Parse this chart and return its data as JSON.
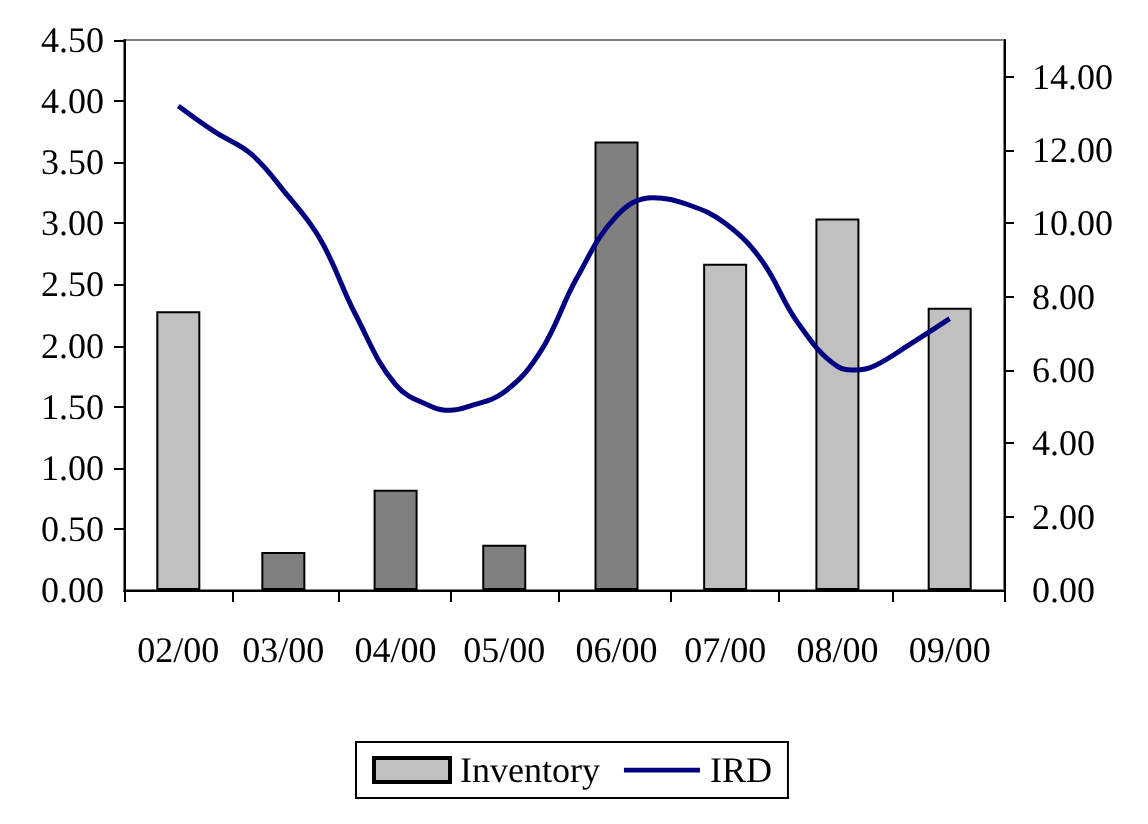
{
  "chart_data": {
    "type": "bar",
    "x": [
      "2000-02",
      "2000-03",
      "2000-04",
      "2000-05",
      "2000-06",
      "2000-07",
      "2000-08",
      "2000-09"
    ],
    "xlim": [
      "2000-01-17",
      "2000-09-16"
    ],
    "xticks": [
      {
        "value": "2000-01-17",
        "label": null
      },
      {
        "value": "2000-02",
        "label": "02/00"
      },
      {
        "value": "2000-02-16",
        "label": null
      },
      {
        "value": "2000-03",
        "label": "03/00"
      },
      {
        "value": "2000-03-16",
        "label": null
      },
      {
        "value": "2000-04",
        "label": "04/00"
      },
      {
        "value": "2000-04-16",
        "label": null
      },
      {
        "value": "2000-05",
        "label": "05/00"
      },
      {
        "value": "2000-05-16",
        "label": null
      },
      {
        "value": "2000-06",
        "label": "06/00"
      },
      {
        "value": "2000-06-16",
        "label": null
      },
      {
        "value": "2000-07",
        "label": "07/00"
      },
      {
        "value": "2000-07-16",
        "label": null
      },
      {
        "value": "2000-08",
        "label": "08/00"
      },
      {
        "value": "2000-08-16",
        "label": null
      },
      {
        "value": "2000-09",
        "label": "09/00"
      },
      {
        "value": "2000-09-16",
        "label": null
      }
    ],
    "ylim": [
      0,
      4.5
    ],
    "yticks": [
      {
        "value": 0,
        "label": "0.00"
      },
      {
        "value": 0.5,
        "label": "0.50"
      },
      {
        "value": 1,
        "label": "1.00"
      },
      {
        "value": 1.5,
        "label": "1.50"
      },
      {
        "value": 2,
        "label": "2.00"
      },
      {
        "value": 2.5,
        "label": "2.50"
      },
      {
        "value": 3,
        "label": "3.00"
      },
      {
        "value": 3.5,
        "label": "3.50"
      },
      {
        "value": 4,
        "label": "4.00"
      },
      {
        "value": 4.5,
        "label": "4.50"
      }
    ],
    "y2lim": [
      0,
      15
    ],
    "y2ticks": [
      {
        "value": 0,
        "label": "0.00"
      },
      {
        "value": 2,
        "label": "2.00"
      },
      {
        "value": 4,
        "label": "4.00"
      },
      {
        "value": 6,
        "label": "6.00"
      },
      {
        "value": 8,
        "label": "8.00"
      },
      {
        "value": 10,
        "label": "10.00"
      },
      {
        "value": 12,
        "label": "12.00"
      },
      {
        "value": 14,
        "label": "14.00"
      }
    ],
    "series": [
      {
        "name": "Inventory",
        "color": "#c0c0c0",
        "colors": [
          "#c0c0c0",
          "#808080",
          "#808080",
          "#808080",
          "#808080",
          "#c0c0c0",
          "#c0c0c0",
          "#c0c0c0"
        ],
        "values": [
          2.28,
          0.31,
          0.82,
          0.37,
          3.67,
          2.67,
          3.04,
          2.31
        ]
      },
      {
        "name": "IRD",
        "type": "line",
        "axis": "y2",
        "color": "#000080",
        "x": [
          "2000-02-01",
          "2000-02-11",
          "2000-02-21",
          "2000-03-01",
          "2000-03-11",
          "2000-03-21",
          "2000-04-01",
          "2000-04-11",
          "2000-04-16",
          "2000-04-21",
          "2000-05-01",
          "2000-05-11",
          "2000-05-21",
          "2000-06-01",
          "2000-06-11",
          "2000-06-21",
          "2000-07-01",
          "2000-07-11",
          "2000-07-21",
          "2000-08-01",
          "2000-08-06",
          "2000-08-11",
          "2000-08-21",
          "2000-09-01"
        ],
        "values": [
          13.2,
          12.5,
          11.9,
          10.9,
          9.6,
          7.5,
          5.6,
          5.0,
          4.9,
          5.0,
          5.4,
          6.5,
          8.5,
          10.2,
          10.7,
          10.5,
          10.0,
          9.0,
          7.3,
          6.1,
          6.0,
          6.1,
          6.7,
          7.4
        ]
      }
    ],
    "legend": "bottom",
    "grid": false
  }
}
